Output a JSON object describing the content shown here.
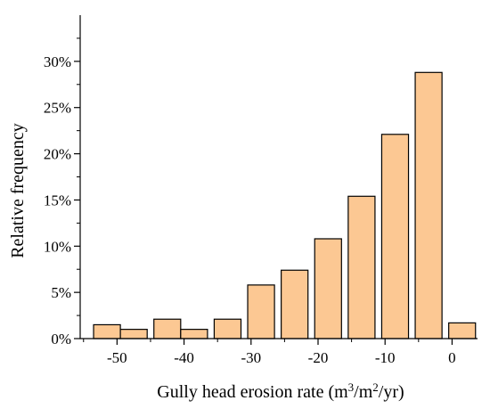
{
  "chart_data": {
    "type": "bar",
    "title": "",
    "xlabel_main": "Gully head erosion rate (m",
    "xlabel_sup1": "3",
    "xlabel_mid": "/m",
    "xlabel_sup2": "2",
    "xlabel_end": "/yr)",
    "ylabel": "Relative frequency",
    "bin_centers": [
      -51.5,
      -47.5,
      -42.5,
      -38.5,
      -33.5,
      -28.5,
      -23.5,
      -18.5,
      -13.5,
      -8.5,
      -3.5,
      1.5
    ],
    "values": [
      1.5,
      1.0,
      2.1,
      1.0,
      2.1,
      5.8,
      7.4,
      10.8,
      15.4,
      22.1,
      28.8,
      1.7
    ],
    "bin_width": 4,
    "xlim": [
      -55.5,
      3.8
    ],
    "ylim": [
      0,
      35
    ],
    "xticks": [
      -50,
      -40,
      -30,
      -20,
      -10,
      0
    ],
    "xtick_labels": [
      "-50",
      "-40",
      "-30",
      "-20",
      "-10",
      "0"
    ],
    "yticks": [
      0,
      5,
      10,
      15,
      20,
      25,
      30
    ],
    "ytick_labels": [
      "0%",
      "5%",
      "10%",
      "15%",
      "20%",
      "25%",
      "30%"
    ],
    "bar_color": "#fcc893",
    "bar_edge_color": "#000000",
    "grid": false,
    "legend": "none"
  }
}
